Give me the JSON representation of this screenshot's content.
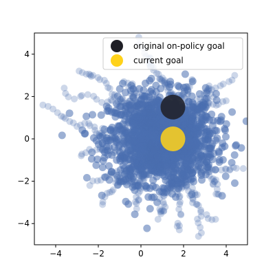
{
  "chart_data": {
    "type": "scatter",
    "title": "",
    "xlabel": "",
    "ylabel": "",
    "xlim": [
      -5,
      5
    ],
    "ylim": [
      -5,
      5
    ],
    "xticks": [
      -4,
      -2,
      0,
      2,
      4
    ],
    "yticks": [
      -4,
      -2,
      0,
      2,
      4
    ],
    "grid": false,
    "legend_position": "top-right",
    "series": [
      {
        "name": "",
        "kind": "trajectory-cloud",
        "color": "#4a6fb0",
        "x_range": [
          -5,
          5
        ],
        "y_range": [
          -4.9,
          4.9
        ]
      },
      {
        "name": "original on-policy goal",
        "color": "#1f1f26",
        "points": [
          {
            "x": 1.5,
            "y": 1.5
          }
        ]
      },
      {
        "name": "current goal",
        "color": "#ffd21a",
        "points": [
          {
            "x": 1.5,
            "y": 0.0
          }
        ]
      }
    ]
  },
  "legend": {
    "items": [
      {
        "label": "original on-policy goal",
        "color": "#1f1f26"
      },
      {
        "label": "current goal",
        "color": "#ffd21a"
      }
    ]
  }
}
